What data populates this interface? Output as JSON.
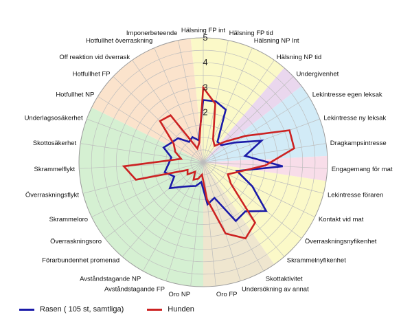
{
  "chart_data": {
    "type": "radar",
    "rmin": 0,
    "rmax": 5,
    "radial_ticks": [
      2,
      3,
      4,
      5
    ],
    "grid": true,
    "legend_placement": "bottom-left",
    "categories": [
      "Hälsning FP int",
      "Hälsning FP tid",
      "Hälsning NP Int",
      "Hälsning NP tid",
      "Undergivenhet",
      "Lekintresse egen leksak",
      "Lekintresse ny leksak",
      "Dragkampsintresse",
      "Engagemang för mat",
      "Lekintresse föraren",
      "Kontakt vid mat",
      "Överraskningsnyfikenhet",
      "Skrammelnyfikenhet",
      "Skottaktivitet",
      "Undersökning av annat",
      "Oro FP",
      "Oro NP",
      "Avståndstagande FP",
      "Avståndstagande NP",
      "Förarbundenhet promenad",
      "Överraskningsoro",
      "Skrammeloro",
      "Överraskningsflykt",
      "Skrammelflykt",
      "Skottosäkerhet",
      "Underlagsosäkerhet",
      "Hotfullhet NP",
      "Hotfullhet FP",
      "Off reaktion vid överrask",
      "Hotfullhet överraskning",
      "Imponerbeteende"
    ],
    "series": [
      {
        "name": "Rasen ( 105 st, samtliga)",
        "color": "#1a1aa8",
        "values": [
          2.5,
          2.5,
          2.3,
          1.0,
          1.0,
          1.5,
          2.5,
          1.7,
          3.2,
          1.4,
          2.2,
          3.2,
          2.6,
          2.7,
          1.5,
          1.7,
          0.8,
          1.0,
          1.1,
          1.3,
          1.7,
          1.3,
          1.6,
          1.4,
          1.3,
          1.7,
          1.5,
          1.4,
          1.0,
          1.1,
          0.9
        ]
      },
      {
        "name": "Hunden",
        "color": "#cc2222",
        "values": [
          3.0,
          2.4,
          1.0,
          0.8,
          1.2,
          2.0,
          3.7,
          3.7,
          2.5,
          1.5,
          1.1,
          1.4,
          3.2,
          3.5,
          3.0,
          1.5,
          0.5,
          0.7,
          0.8,
          0.5,
          0.8,
          0.7,
          2.8,
          3.2,
          0.9,
          1.2,
          1.4,
          2.4,
          2.3,
          0.6,
          0.8
        ]
      }
    ],
    "sectors": [
      {
        "from": 0,
        "to": 3,
        "color": "#fbf9c8"
      },
      {
        "from": 4,
        "to": 4,
        "color": "#ead7ee"
      },
      {
        "from": 5,
        "to": 7,
        "color": "#d2ebf7"
      },
      {
        "from": 8,
        "to": 8,
        "color": "#f8dde9"
      },
      {
        "from": 9,
        "to": 12,
        "color": "#fbf9c8"
      },
      {
        "from": 13,
        "to": 15,
        "color": "#efe6cf"
      },
      {
        "from": 16,
        "to": 25,
        "color": "#d5f0d2"
      },
      {
        "from": 26,
        "to": 30,
        "color": "#fbe3cc"
      }
    ]
  }
}
